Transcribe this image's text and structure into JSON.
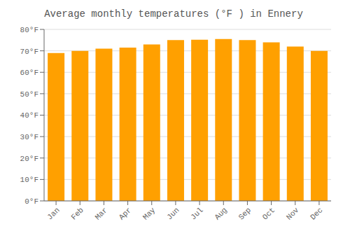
{
  "chart_data": {
    "type": "bar",
    "title": "Average monthly temperatures (°F ) in Ennery",
    "categories": [
      "Jan",
      "Feb",
      "Mar",
      "Apr",
      "May",
      "Jun",
      "Jul",
      "Aug",
      "Sep",
      "Oct",
      "Nov",
      "Dec"
    ],
    "values": [
      69,
      70,
      71,
      71.5,
      73,
      75,
      75.2,
      75.5,
      75,
      74,
      72,
      70
    ],
    "color": "#FFA000",
    "ylim": [
      0,
      80
    ],
    "yticks": [
      {
        "value": 0,
        "label": "0°F"
      },
      {
        "value": 10,
        "label": "10°F"
      },
      {
        "value": 20,
        "label": "20°F"
      },
      {
        "value": 30,
        "label": "30°F"
      },
      {
        "value": 40,
        "label": "40°F"
      },
      {
        "value": 50,
        "label": "50°F"
      },
      {
        "value": 60,
        "label": "60°F"
      },
      {
        "value": 70,
        "label": "70°F"
      },
      {
        "value": 80,
        "label": "80°F"
      }
    ],
    "grid": true
  }
}
